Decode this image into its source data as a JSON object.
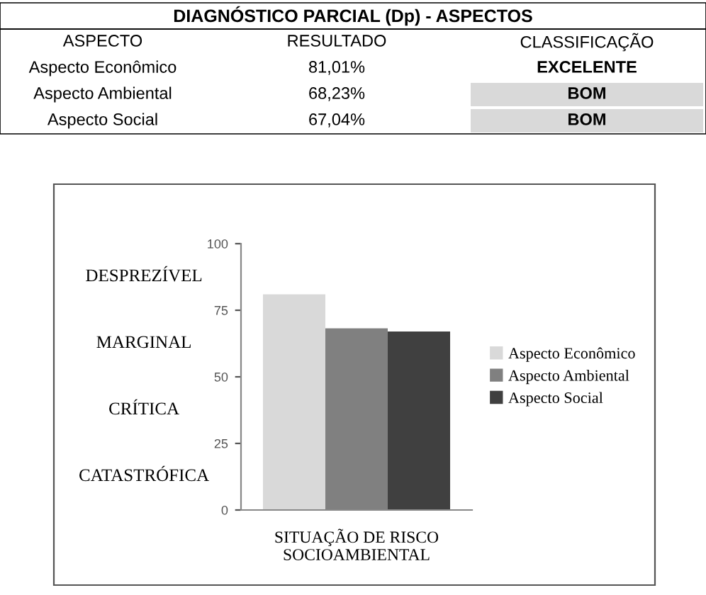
{
  "chart_data": {
    "type": "bar",
    "title": "DIAGNÓSTICO PARCIAL (Dp) - ASPECTOS",
    "xlabel": "SITUAÇÃO DE RISCO\nSOCIOAMBIENTAL",
    "categories": [
      null
    ],
    "series": [
      {
        "name": "Aspecto Econômico",
        "color": "#d9d9d9",
        "values": [
          81.01
        ]
      },
      {
        "name": "Aspecto Ambiental",
        "color": "#808080",
        "values": [
          68.23
        ]
      },
      {
        "name": "Aspecto Social",
        "color": "#404040",
        "values": [
          67.04
        ]
      }
    ],
    "ylim": [
      0,
      100
    ],
    "yticks": [
      0,
      25,
      50,
      75,
      100
    ],
    "grid": false,
    "legend": "right",
    "annotations": [
      "ASPECTO",
      "RESULTADO",
      "CLASSIFICAÇÃO",
      "81,01%",
      "68,23%",
      "67,04%",
      "EXCELENTE",
      "BOM",
      "BOM",
      "DESPREZÍVEL",
      "MARGINAL",
      "CRÍTICA",
      "CATASTRÓFICA"
    ]
  }
}
